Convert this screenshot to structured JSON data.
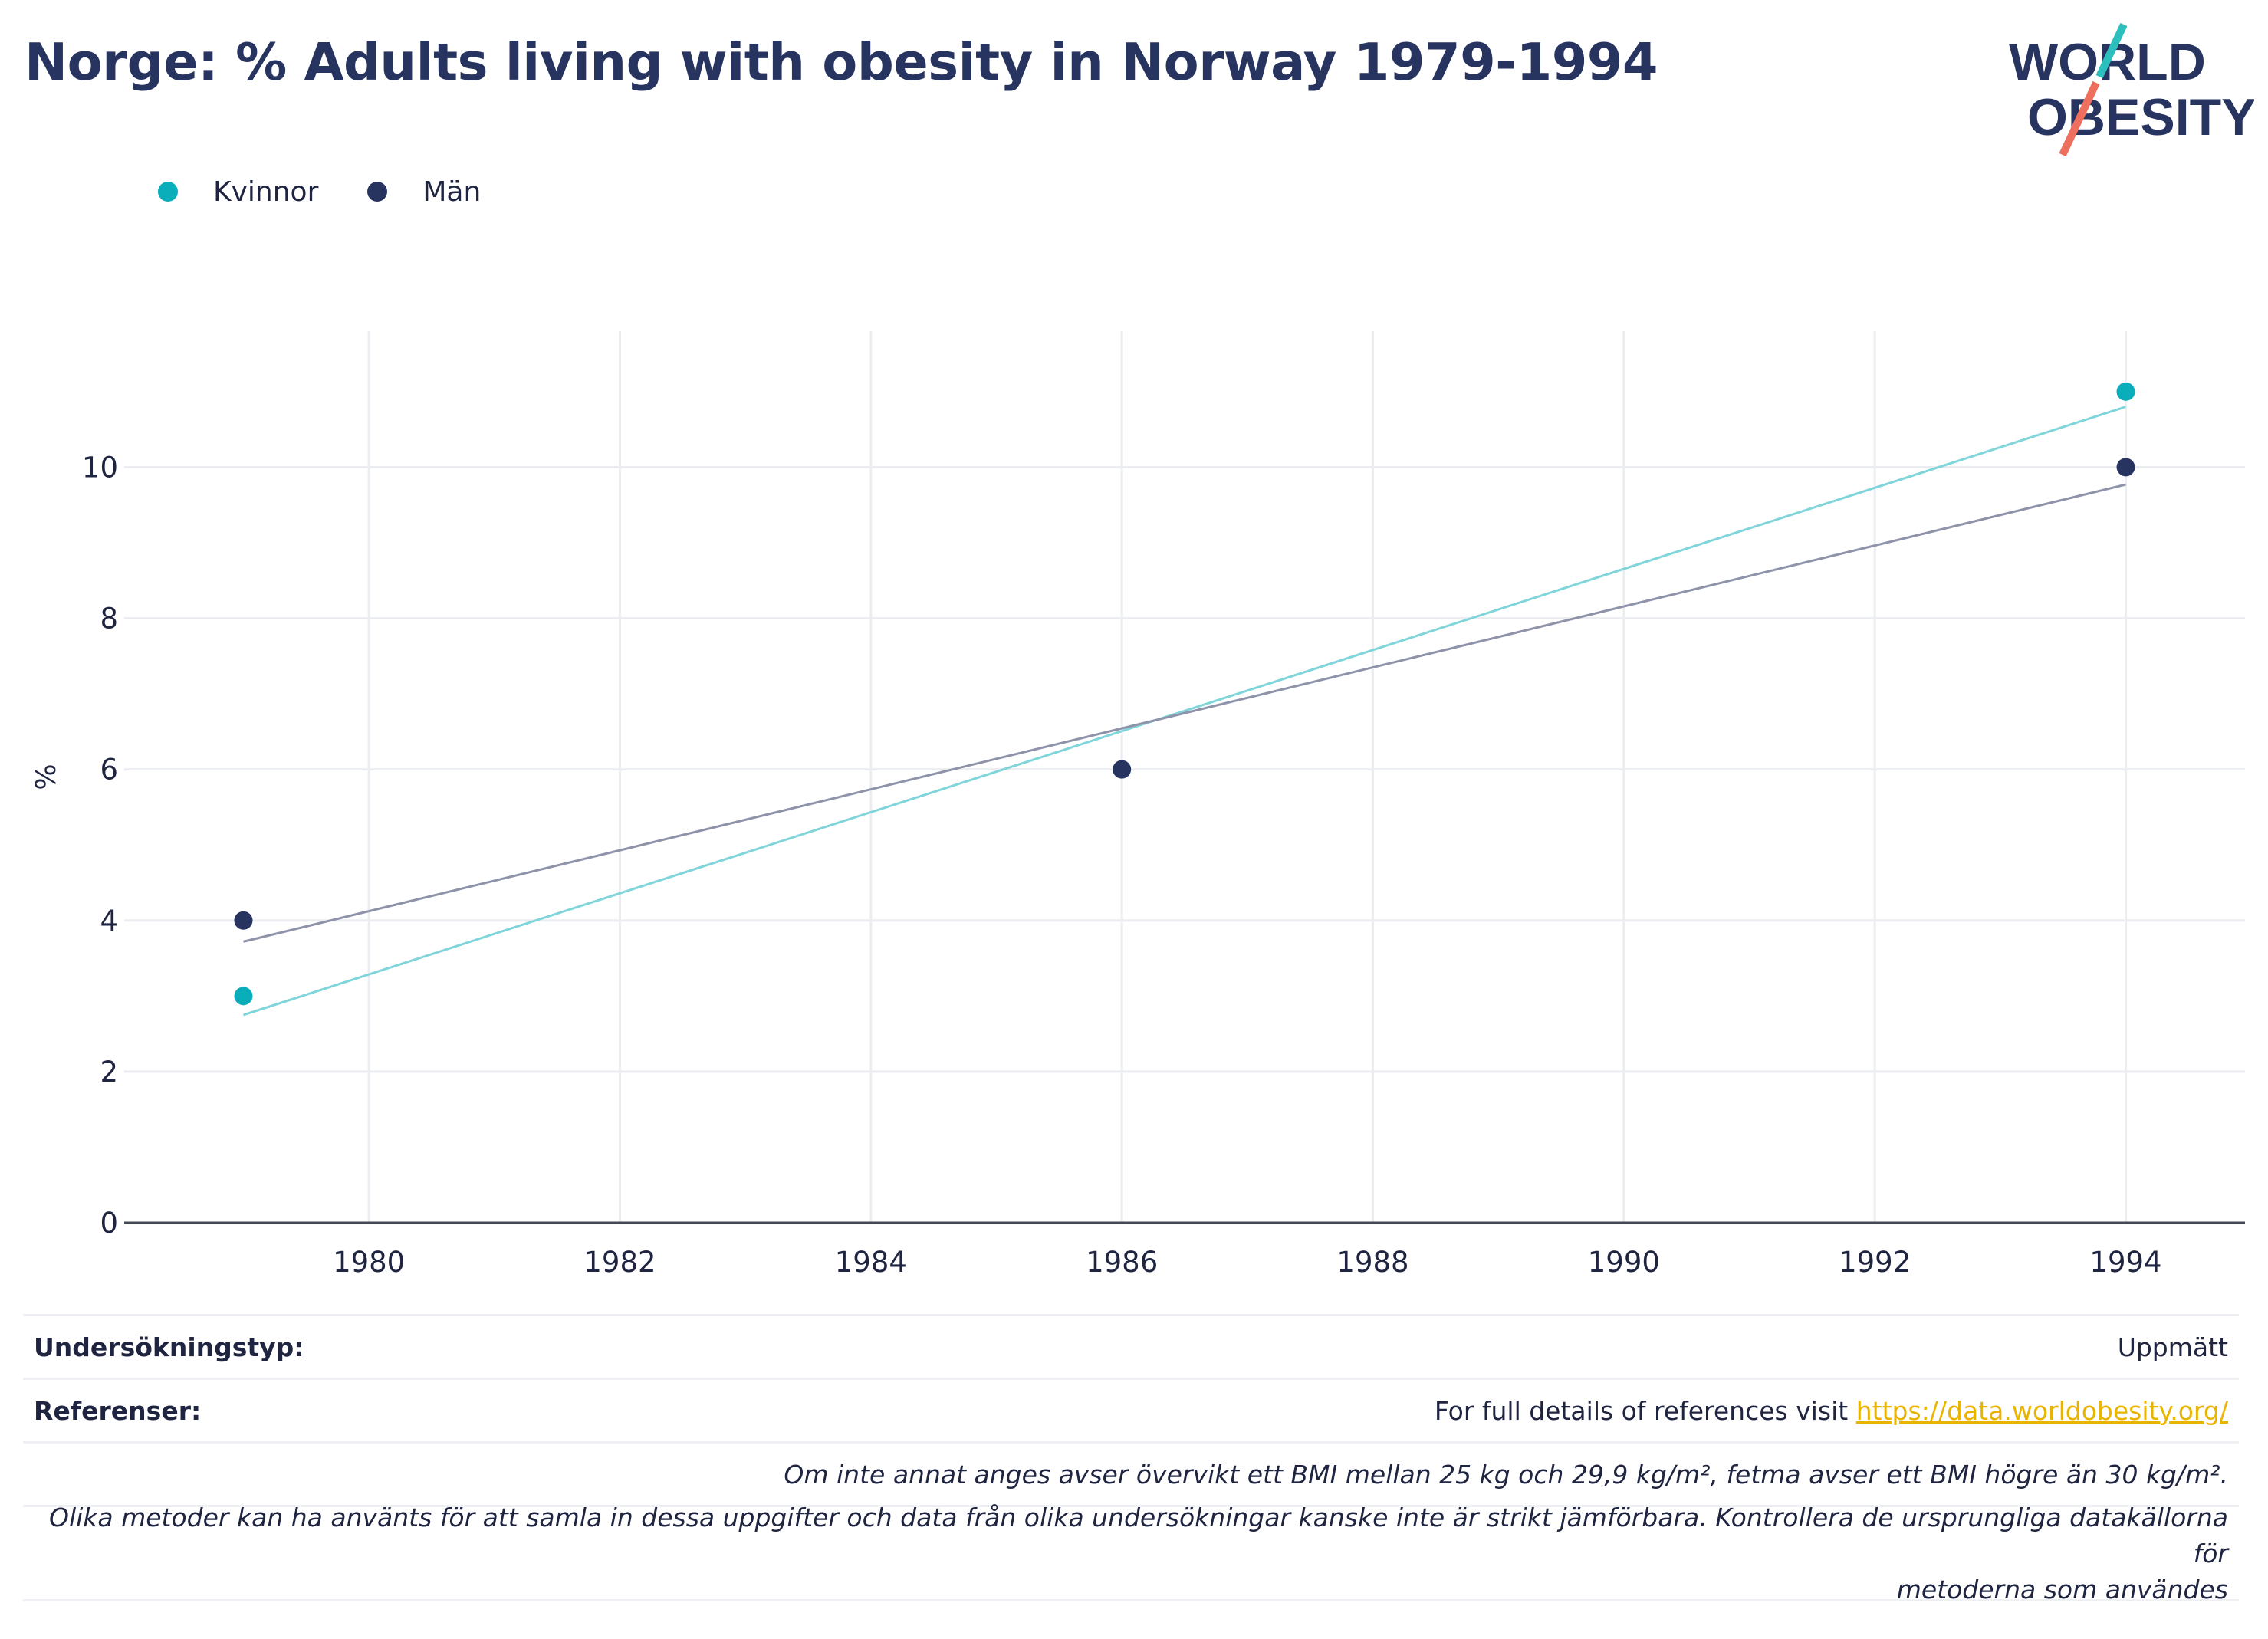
{
  "title": "Norge: % Adults living with obesity in Norway 1979-1994",
  "logo": {
    "line1": "WORLD",
    "line2": "OBESITY",
    "accent_teal": "#2bbfbd",
    "accent_coral": "#ef6f5e"
  },
  "legend": [
    {
      "label": "Kvinnor",
      "color": "#0aaebb"
    },
    {
      "label": "Män",
      "color": "#283460"
    }
  ],
  "chart_data": {
    "type": "scatter",
    "title": "Norge: % Adults living with obesity in Norway 1979-1994",
    "xlabel": "",
    "ylabel": "%",
    "xlim": [
      1978.05,
      1994.95
    ],
    "ylim": [
      0,
      11.8
    ],
    "x_ticks": [
      1980,
      1982,
      1984,
      1986,
      1988,
      1990,
      1992,
      1994
    ],
    "y_ticks": [
      0,
      2,
      4,
      6,
      8,
      10
    ],
    "grid": true,
    "legend_position": "top-left",
    "series": [
      {
        "name": "Kvinnor",
        "color": "#0aaebb",
        "trend_color": "#7fd5da",
        "points": [
          {
            "x": 1979,
            "y": 3
          },
          {
            "x": 1994,
            "y": 11
          }
        ],
        "trendline": [
          {
            "x": 1979,
            "y": 2.75
          },
          {
            "x": 1994,
            "y": 10.8
          }
        ]
      },
      {
        "name": "Män",
        "color": "#283460",
        "trend_color": "#8e93a9",
        "points": [
          {
            "x": 1979,
            "y": 4
          },
          {
            "x": 1986,
            "y": 6
          },
          {
            "x": 1994,
            "y": 10
          }
        ],
        "trendline": [
          {
            "x": 1979,
            "y": 3.72
          },
          {
            "x": 1994,
            "y": 9.77
          }
        ]
      }
    ]
  },
  "footer": {
    "survey_type_label": "Undersökningstyp:",
    "survey_type_value": "Uppmätt",
    "references_label": "Referenser:",
    "references_text": "For full details of references visit ",
    "references_link": "https://data.worldobesity.org/",
    "note_bmi": "Om inte annat anges avser övervikt ett BMI mellan 25 kg och 29,9 kg/m², fetma avser ett BMI högre än 30 kg/m².",
    "note_methods_1": "Olika metoder kan ha använts för att samla in dessa uppgifter och data från olika undersökningar kanske inte är strikt jämförbara. Kontrollera de ursprungliga datakällorna för",
    "note_methods_2": "metoderna som användes"
  }
}
